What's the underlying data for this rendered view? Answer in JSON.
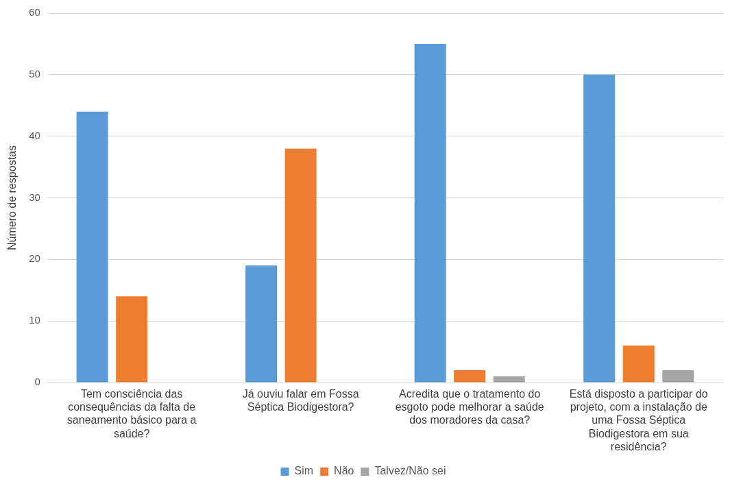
{
  "chart_data": {
    "type": "bar",
    "ylabel": "Número de respostas",
    "categories": [
      "Tem consciência das consequências da falta de saneamento básico para a saúde?",
      "Já ouviu falar em Fossa Séptica Biodigestora?",
      "Acredita que o tratamento do esgoto pode melhorar a saúde dos moradores da casa?",
      "Está disposto a participar do projeto, com a instalação de uma Fossa Séptica Biodigestora em sua residência?"
    ],
    "series": [
      {
        "name": "Sim",
        "color": "#5b9bd5",
        "values": [
          44,
          19,
          55,
          50
        ]
      },
      {
        "name": "Não",
        "color": "#ed7d31",
        "values": [
          14,
          38,
          2,
          6
        ]
      },
      {
        "name": "Talvez/Não sei",
        "color": "#a5a5a5",
        "values": [
          null,
          null,
          1,
          2
        ]
      }
    ],
    "ylim": [
      0,
      60
    ],
    "yticks": [
      0,
      10,
      20,
      30,
      40,
      50,
      60
    ],
    "grid": "y",
    "legend": "bottom"
  }
}
